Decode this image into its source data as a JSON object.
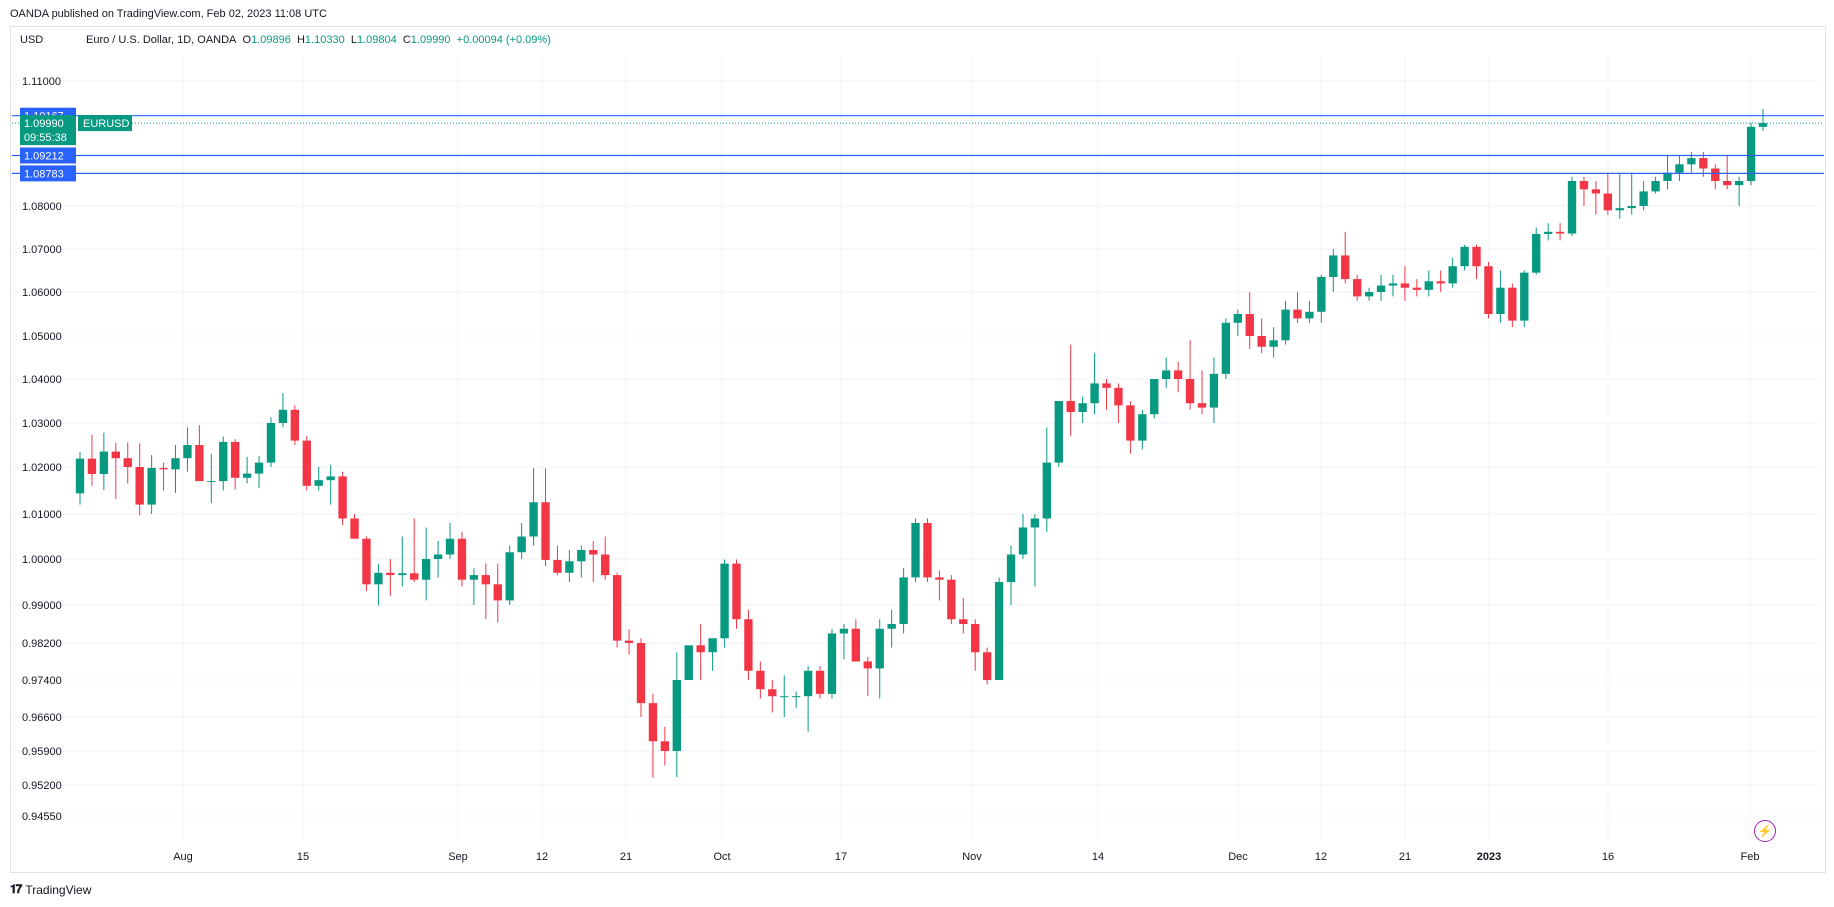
{
  "header": {
    "attribution": "OANDA published on TradingView.com, Feb 02, 2023 11:08 UTC",
    "currency": "USD",
    "symbol_title": "Euro / U.S. Dollar, 1D, OANDA",
    "o_label": "O",
    "o_value": "1.09896",
    "h_label": "H",
    "h_value": "1.10330",
    "l_label": "L",
    "l_value": "1.09804",
    "c_label": "C",
    "c_value": "1.09990",
    "change": "+0.00094 (+0.09%)"
  },
  "footer": {
    "brand": "TradingView",
    "brand_icon": "tradingview-logo-icon",
    "bolt_icon": "lightning-icon"
  },
  "colors": {
    "up": "#089981",
    "down": "#f23645",
    "hline": "#2962ff",
    "grid": "#f0f3fa",
    "price_tag": "#089981"
  },
  "chart_data": {
    "type": "candlestick",
    "symbol": "EURUSD",
    "price_tag": {
      "value": "1.09990",
      "countdown": "09:55:38",
      "symbol": "EURUSD"
    },
    "horizontal_lines": [
      "1.10167",
      "1.09212",
      "1.08783"
    ],
    "y_ticks": [
      "1.11000",
      "1.08000",
      "1.07000",
      "1.06000",
      "1.05000",
      "1.04000",
      "1.03000",
      "1.02000",
      "1.01000",
      "1.00000",
      "0.99000",
      "0.98200",
      "0.97400",
      "0.96600",
      "0.95900",
      "0.95200",
      "0.94550"
    ],
    "x_ticks": [
      "Aug",
      "15",
      "Sep",
      "12",
      "21",
      "Oct",
      "17",
      "Nov",
      "14",
      "Dec",
      "12",
      "21",
      "2023",
      "16",
      "Feb"
    ],
    "ylim": [
      0.94,
      1.115
    ],
    "candles": [
      [
        1.0144,
        1.0234,
        1.012,
        1.0219
      ],
      [
        1.0219,
        1.0273,
        1.016,
        1.0185
      ],
      [
        1.0185,
        1.0278,
        1.0151,
        1.0235
      ],
      [
        1.0235,
        1.0255,
        1.0132,
        1.022
      ],
      [
        1.022,
        1.0256,
        1.0165,
        1.02
      ],
      [
        1.02,
        1.0254,
        1.0097,
        1.012
      ],
      [
        1.012,
        1.0227,
        1.01,
        1.0198
      ],
      [
        1.0198,
        1.021,
        1.015,
        1.0195
      ],
      [
        1.0195,
        1.025,
        1.0145,
        1.022
      ],
      [
        1.022,
        1.029,
        1.019,
        1.025
      ],
      [
        1.025,
        1.0295,
        1.017,
        1.017
      ],
      [
        1.017,
        1.023,
        1.0123,
        1.017
      ],
      [
        1.017,
        1.0269,
        1.015,
        1.0257
      ],
      [
        1.0257,
        1.0263,
        1.0152,
        1.0177
      ],
      [
        1.0177,
        1.0223,
        1.0165,
        1.0186
      ],
      [
        1.0186,
        1.0225,
        1.0155,
        1.021
      ],
      [
        1.021,
        1.0313,
        1.02,
        1.03
      ],
      [
        1.03,
        1.0368,
        1.029,
        1.033
      ],
      [
        1.033,
        1.034,
        1.025,
        1.026
      ],
      [
        1.026,
        1.027,
        1.015,
        1.016
      ],
      [
        1.016,
        1.02,
        1.015,
        1.0172
      ],
      [
        1.0172,
        1.0205,
        1.012,
        1.018
      ],
      [
        1.018,
        1.019,
        1.0075,
        1.009
      ],
      [
        1.009,
        1.01,
        1.005,
        1.0045
      ],
      [
        1.0045,
        1.005,
        0.993,
        0.9945
      ],
      [
        0.9945,
        0.999,
        0.9899,
        0.997
      ],
      [
        0.997,
        1.0,
        0.992,
        0.9965
      ],
      [
        0.9965,
        1.005,
        0.994,
        0.9969
      ],
      [
        0.9969,
        1.009,
        0.995,
        0.9955
      ],
      [
        0.9955,
        1.007,
        0.991,
        1.0
      ],
      [
        1.0,
        1.004,
        0.996,
        1.001
      ],
      [
        1.001,
        1.008,
        1.0,
        1.0045
      ],
      [
        1.0045,
        1.006,
        0.994,
        0.9955
      ],
      [
        0.9955,
        0.998,
        0.99,
        0.9965
      ],
      [
        0.9965,
        0.999,
        0.987,
        0.9945
      ],
      [
        0.9945,
        0.999,
        0.9863,
        0.991
      ],
      [
        0.991,
        1.003,
        0.99,
        1.0015
      ],
      [
        1.0015,
        1.008,
        1.0,
        1.005
      ],
      [
        1.005,
        1.0198,
        1.003,
        1.0125
      ],
      [
        1.0125,
        1.0197,
        0.9985,
        0.9998
      ],
      [
        0.9998,
        1.003,
        0.9965,
        0.997
      ],
      [
        0.997,
        1.002,
        0.995,
        0.9995
      ],
      [
        0.9995,
        1.003,
        0.996,
        1.002
      ],
      [
        1.002,
        1.004,
        0.995,
        1.001
      ],
      [
        1.001,
        1.005,
        0.9955,
        0.9965
      ],
      [
        0.9965,
        0.997,
        0.981,
        0.9825
      ],
      [
        0.9825,
        0.9849,
        0.9795,
        0.982
      ],
      [
        0.982,
        0.983,
        0.966,
        0.969
      ],
      [
        0.969,
        0.971,
        0.9535,
        0.961
      ],
      [
        0.961,
        0.964,
        0.956,
        0.959
      ],
      [
        0.959,
        0.98,
        0.9536,
        0.974
      ],
      [
        0.974,
        0.981,
        0.974,
        0.9815
      ],
      [
        0.9815,
        0.986,
        0.974,
        0.98
      ],
      [
        0.98,
        0.983,
        0.976,
        0.983
      ],
      [
        0.983,
        0.9999,
        0.981,
        0.999
      ],
      [
        0.999,
        0.9999,
        0.985,
        0.987
      ],
      [
        0.987,
        0.989,
        0.974,
        0.976
      ],
      [
        0.976,
        0.978,
        0.97,
        0.972
      ],
      [
        0.972,
        0.974,
        0.967,
        0.9705
      ],
      [
        0.9705,
        0.975,
        0.966,
        0.9705
      ],
      [
        0.9705,
        0.9715,
        0.968,
        0.9705
      ],
      [
        0.9705,
        0.977,
        0.963,
        0.976
      ],
      [
        0.976,
        0.977,
        0.97,
        0.971
      ],
      [
        0.971,
        0.985,
        0.97,
        0.984
      ],
      [
        0.984,
        0.986,
        0.9785,
        0.985
      ],
      [
        0.985,
        0.987,
        0.979,
        0.978
      ],
      [
        0.978,
        0.979,
        0.9705,
        0.9765
      ],
      [
        0.9765,
        0.987,
        0.97,
        0.985
      ],
      [
        0.985,
        0.989,
        0.981,
        0.986
      ],
      [
        0.986,
        0.998,
        0.984,
        0.996
      ],
      [
        0.996,
        1.009,
        0.995,
        1.008
      ],
      [
        1.008,
        1.009,
        0.995,
        0.996
      ],
      [
        0.996,
        0.9975,
        0.991,
        0.9955
      ],
      [
        0.9955,
        0.9965,
        0.986,
        0.987
      ],
      [
        0.987,
        0.9915,
        0.984,
        0.986
      ],
      [
        0.986,
        0.987,
        0.976,
        0.98
      ],
      [
        0.98,
        0.981,
        0.973,
        0.974
      ],
      [
        0.974,
        0.996,
        0.974,
        0.995
      ],
      [
        0.995,
        1.003,
        0.99,
        1.001
      ],
      [
        1.001,
        1.01,
        1.0,
        1.007
      ],
      [
        1.007,
        1.01,
        0.994,
        1.009
      ],
      [
        1.009,
        1.029,
        1.006,
        1.021
      ],
      [
        1.021,
        1.035,
        1.02,
        1.035
      ],
      [
        1.035,
        1.048,
        1.027,
        1.0325
      ],
      [
        1.0325,
        1.036,
        1.03,
        1.0345
      ],
      [
        1.0345,
        1.046,
        1.032,
        1.039
      ],
      [
        1.039,
        1.04,
        1.033,
        1.038
      ],
      [
        1.038,
        1.039,
        1.03,
        1.034
      ],
      [
        1.034,
        1.035,
        1.023,
        1.026
      ],
      [
        1.026,
        1.033,
        1.024,
        1.032
      ],
      [
        1.032,
        1.04,
        1.031,
        1.04
      ],
      [
        1.04,
        1.045,
        1.038,
        1.042
      ],
      [
        1.042,
        1.044,
        1.037,
        1.04
      ],
      [
        1.04,
        1.049,
        1.033,
        1.0345
      ],
      [
        1.0345,
        1.042,
        1.032,
        1.0335
      ],
      [
        1.0335,
        1.045,
        1.03,
        1.0412
      ],
      [
        1.0412,
        1.054,
        1.04,
        1.053
      ],
      [
        1.053,
        1.056,
        1.05,
        1.055
      ],
      [
        1.055,
        1.06,
        1.047,
        1.05
      ],
      [
        1.05,
        1.054,
        1.046,
        1.0475
      ],
      [
        1.0475,
        1.052,
        1.045,
        1.049
      ],
      [
        1.049,
        1.058,
        1.048,
        1.056
      ],
      [
        1.056,
        1.06,
        1.053,
        1.054
      ],
      [
        1.054,
        1.058,
        1.053,
        1.0555
      ],
      [
        1.0555,
        1.064,
        1.053,
        1.0635
      ],
      [
        1.0635,
        1.07,
        1.06,
        1.0685
      ],
      [
        1.0685,
        1.074,
        1.062,
        1.063
      ],
      [
        1.063,
        1.064,
        1.058,
        1.059
      ],
      [
        1.059,
        1.061,
        1.058,
        1.06
      ],
      [
        1.06,
        1.064,
        1.058,
        1.0615
      ],
      [
        1.0615,
        1.064,
        1.059,
        1.062
      ],
      [
        1.062,
        1.066,
        1.058,
        1.061
      ],
      [
        1.061,
        1.063,
        1.059,
        1.0605
      ],
      [
        1.0605,
        1.065,
        1.059,
        1.0625
      ],
      [
        1.0625,
        1.065,
        1.06,
        1.062
      ],
      [
        1.062,
        1.068,
        1.061,
        1.066
      ],
      [
        1.066,
        1.071,
        1.065,
        1.0705
      ],
      [
        1.0705,
        1.071,
        1.063,
        1.066
      ],
      [
        1.066,
        1.067,
        1.054,
        1.055
      ],
      [
        1.055,
        1.065,
        1.053,
        1.061
      ],
      [
        1.061,
        1.062,
        1.052,
        1.0535
      ],
      [
        1.0535,
        1.065,
        1.052,
        1.0645
      ],
      [
        1.0645,
        1.075,
        1.064,
        1.0735
      ],
      [
        1.0735,
        1.076,
        1.072,
        1.074
      ],
      [
        1.074,
        1.076,
        1.072,
        1.0736
      ],
      [
        1.0736,
        1.087,
        1.073,
        1.086
      ],
      [
        1.086,
        1.087,
        1.08,
        1.084
      ],
      [
        1.084,
        1.086,
        1.078,
        1.083
      ],
      [
        1.083,
        1.088,
        1.078,
        1.079
      ],
      [
        1.079,
        1.088,
        1.077,
        1.0795
      ],
      [
        1.0795,
        1.088,
        1.078,
        1.08
      ],
      [
        1.08,
        1.086,
        1.079,
        1.0835
      ],
      [
        1.0835,
        1.087,
        1.083,
        1.086
      ],
      [
        1.086,
        1.092,
        1.084,
        1.088
      ],
      [
        1.088,
        1.092,
        1.086,
        1.09
      ],
      [
        1.09,
        1.093,
        1.088,
        1.0915
      ],
      [
        1.0915,
        1.093,
        1.087,
        1.089
      ],
      [
        1.089,
        1.09,
        1.084,
        1.086
      ],
      [
        1.086,
        1.092,
        1.084,
        1.085
      ],
      [
        1.085,
        1.087,
        1.08,
        1.086
      ],
      [
        1.086,
        1.1,
        1.085,
        1.099
      ],
      [
        1.099,
        1.1033,
        1.098,
        1.0999
      ]
    ]
  }
}
